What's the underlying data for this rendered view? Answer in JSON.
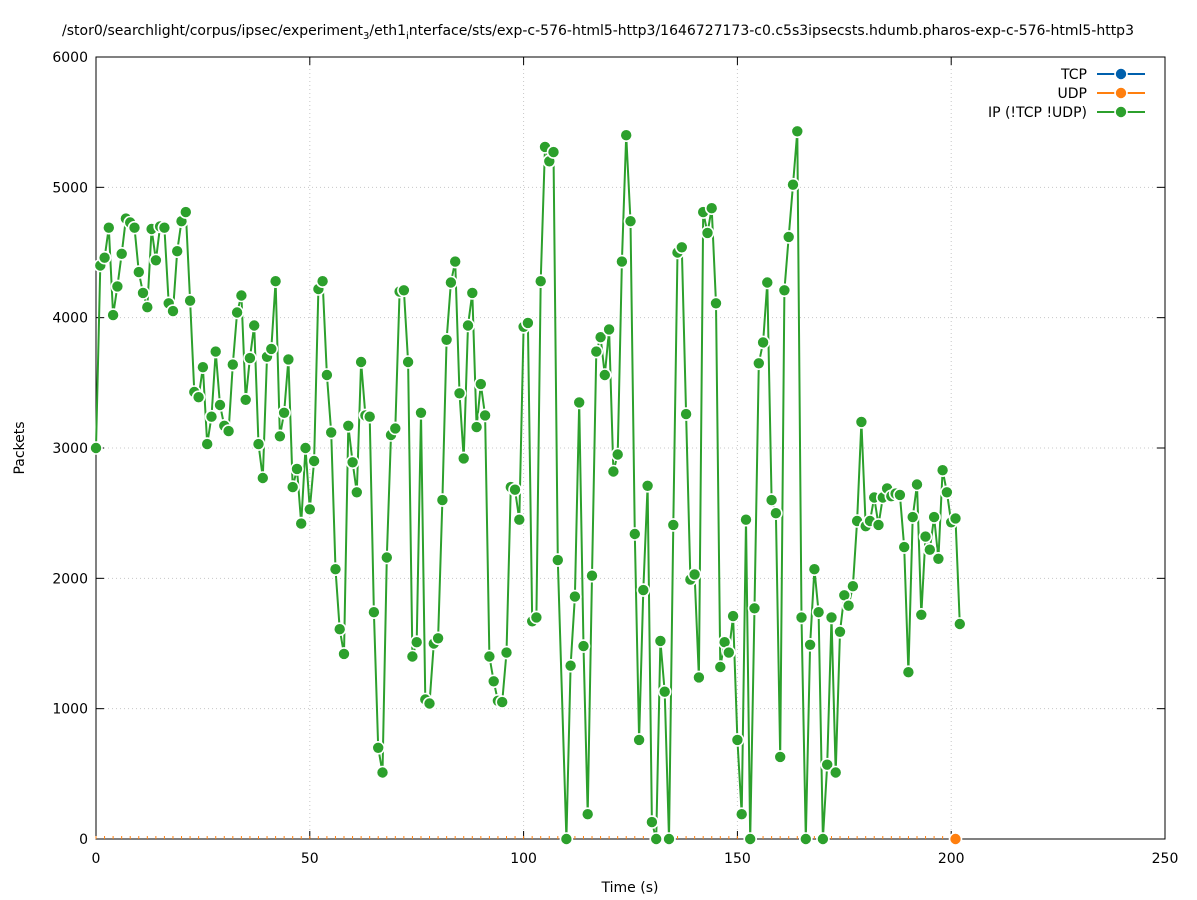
{
  "chart_data": {
    "type": "line",
    "title_parts": [
      {
        "text": "/stor0/searchlight/corpus/ipsec/experiment"
      },
      {
        "text": "3",
        "sub": true
      },
      {
        "text": "/eth1"
      },
      {
        "text": "i",
        "sub": true
      },
      {
        "text": "nterface/sts/exp-c-576-html5-http3/1646727173-c0.c5s3ipsecsts.hdumb.pharos-exp-c-576-html5-http3"
      }
    ],
    "xlabel": "Time (s)",
    "ylabel": "Packets",
    "xlim": [
      0,
      250
    ],
    "ylim": [
      0,
      6000
    ],
    "x_ticks": [
      "0",
      "50",
      "100",
      "150",
      "200",
      "250"
    ],
    "y_ticks": [
      "0",
      "1000",
      "2000",
      "3000",
      "4000",
      "5000",
      "6000"
    ],
    "grid": true,
    "legend_position": "top-right",
    "series": [
      {
        "name": "TCP",
        "color": "#0060ad",
        "points": []
      },
      {
        "name": "UDP",
        "color": "#ff7f0e",
        "points": [
          [
            201,
            0
          ]
        ]
      },
      {
        "name": "IP (!TCP  !UDP)",
        "color": "#2ca02c",
        "points": [
          [
            0,
            3000
          ],
          [
            1,
            4400
          ],
          [
            2,
            4460
          ],
          [
            3,
            4690
          ],
          [
            4,
            4020
          ],
          [
            5,
            4240
          ],
          [
            6,
            4490
          ],
          [
            7,
            4760
          ],
          [
            8,
            4730
          ],
          [
            9,
            4690
          ],
          [
            10,
            4350
          ],
          [
            11,
            4190
          ],
          [
            12,
            4080
          ],
          [
            13,
            4680
          ],
          [
            14,
            4440
          ],
          [
            15,
            4700
          ],
          [
            16,
            4690
          ],
          [
            17,
            4110
          ],
          [
            18,
            4050
          ],
          [
            19,
            4510
          ],
          [
            20,
            4740
          ],
          [
            21,
            4810
          ],
          [
            22,
            4130
          ],
          [
            23,
            3430
          ],
          [
            24,
            3390
          ],
          [
            25,
            3620
          ],
          [
            26,
            3030
          ],
          [
            27,
            3240
          ],
          [
            28,
            3740
          ],
          [
            29,
            3330
          ],
          [
            30,
            3170
          ],
          [
            31,
            3130
          ],
          [
            32,
            3640
          ],
          [
            33,
            4040
          ],
          [
            34,
            4170
          ],
          [
            35,
            3370
          ],
          [
            36,
            3690
          ],
          [
            37,
            3940
          ],
          [
            38,
            3030
          ],
          [
            39,
            2770
          ],
          [
            40,
            3700
          ],
          [
            41,
            3760
          ],
          [
            42,
            4280
          ],
          [
            43,
            3090
          ],
          [
            44,
            3270
          ],
          [
            45,
            3680
          ],
          [
            46,
            2700
          ],
          [
            47,
            2840
          ],
          [
            48,
            2420
          ],
          [
            49,
            3000
          ],
          [
            50,
            2530
          ],
          [
            51,
            2900
          ],
          [
            52,
            4220
          ],
          [
            53,
            4280
          ],
          [
            54,
            3560
          ],
          [
            55,
            3120
          ],
          [
            56,
            2070
          ],
          [
            57,
            1610
          ],
          [
            58,
            1420
          ],
          [
            59,
            3170
          ],
          [
            60,
            2890
          ],
          [
            61,
            2660
          ],
          [
            62,
            3660
          ],
          [
            63,
            3250
          ],
          [
            64,
            3240
          ],
          [
            65,
            1740
          ],
          [
            66,
            700
          ],
          [
            67,
            510
          ],
          [
            68,
            2160
          ],
          [
            69,
            3100
          ],
          [
            70,
            3150
          ],
          [
            71,
            4200
          ],
          [
            72,
            4210
          ],
          [
            73,
            3660
          ],
          [
            74,
            1400
          ],
          [
            75,
            1510
          ],
          [
            76,
            3270
          ],
          [
            77,
            1070
          ],
          [
            78,
            1040
          ],
          [
            79,
            1500
          ],
          [
            80,
            1540
          ],
          [
            81,
            2600
          ],
          [
            82,
            3830
          ],
          [
            83,
            4270
          ],
          [
            84,
            4430
          ],
          [
            85,
            3420
          ],
          [
            86,
            2920
          ],
          [
            87,
            3940
          ],
          [
            88,
            4190
          ],
          [
            89,
            3160
          ],
          [
            90,
            3490
          ],
          [
            91,
            3250
          ],
          [
            92,
            1400
          ],
          [
            93,
            1210
          ],
          [
            94,
            1060
          ],
          [
            95,
            1050
          ],
          [
            96,
            1430
          ],
          [
            97,
            2700
          ],
          [
            98,
            2680
          ],
          [
            99,
            2450
          ],
          [
            100,
            3930
          ],
          [
            101,
            3960
          ],
          [
            102,
            1670
          ],
          [
            103,
            1700
          ],
          [
            104,
            4280
          ],
          [
            105,
            5310
          ],
          [
            106,
            5200
          ],
          [
            107,
            5270
          ],
          [
            108,
            2140
          ],
          [
            110,
            0
          ],
          [
            111,
            1330
          ],
          [
            112,
            1860
          ],
          [
            113,
            3350
          ],
          [
            114,
            1480
          ],
          [
            115,
            190
          ],
          [
            116,
            2020
          ],
          [
            117,
            3740
          ],
          [
            118,
            3850
          ],
          [
            119,
            3560
          ],
          [
            120,
            3910
          ],
          [
            121,
            2820
          ],
          [
            122,
            2950
          ],
          [
            123,
            4430
          ],
          [
            124,
            5400
          ],
          [
            125,
            4740
          ],
          [
            126,
            2340
          ],
          [
            127,
            760
          ],
          [
            128,
            1910
          ],
          [
            129,
            2710
          ],
          [
            130,
            130
          ],
          [
            131,
            0
          ],
          [
            132,
            1520
          ],
          [
            133,
            1130
          ],
          [
            134,
            0
          ],
          [
            135,
            2410
          ],
          [
            136,
            4500
          ],
          [
            137,
            4540
          ],
          [
            138,
            3260
          ],
          [
            139,
            1990
          ],
          [
            140,
            2030
          ],
          [
            141,
            1240
          ],
          [
            142,
            4810
          ],
          [
            143,
            4650
          ],
          [
            144,
            4840
          ],
          [
            145,
            4110
          ],
          [
            146,
            1320
          ],
          [
            147,
            1510
          ],
          [
            148,
            1430
          ],
          [
            149,
            1710
          ],
          [
            150,
            760
          ],
          [
            151,
            190
          ],
          [
            152,
            2450
          ],
          [
            153,
            0
          ],
          [
            154,
            1770
          ],
          [
            155,
            3650
          ],
          [
            156,
            3810
          ],
          [
            157,
            4270
          ],
          [
            158,
            2600
          ],
          [
            159,
            2500
          ],
          [
            160,
            630
          ],
          [
            161,
            4210
          ],
          [
            162,
            4620
          ],
          [
            163,
            5020
          ],
          [
            164,
            5430
          ],
          [
            165,
            1700
          ],
          [
            166,
            0
          ],
          [
            167,
            1490
          ],
          [
            168,
            2070
          ],
          [
            169,
            1740
          ],
          [
            170,
            0
          ],
          [
            171,
            570
          ],
          [
            172,
            1700
          ],
          [
            173,
            510
          ],
          [
            174,
            1590
          ],
          [
            175,
            1870
          ],
          [
            176,
            1790
          ],
          [
            177,
            1940
          ],
          [
            178,
            2440
          ],
          [
            179,
            3200
          ],
          [
            180,
            2400
          ],
          [
            181,
            2440
          ],
          [
            182,
            2620
          ],
          [
            183,
            2410
          ],
          [
            184,
            2620
          ],
          [
            185,
            2690
          ],
          [
            186,
            2630
          ],
          [
            187,
            2650
          ],
          [
            188,
            2640
          ],
          [
            189,
            2240
          ],
          [
            190,
            1280
          ],
          [
            191,
            2470
          ],
          [
            192,
            2720
          ],
          [
            193,
            1720
          ],
          [
            194,
            2320
          ],
          [
            195,
            2220
          ],
          [
            196,
            2470
          ],
          [
            197,
            2150
          ],
          [
            198,
            2830
          ],
          [
            199,
            2660
          ],
          [
            200,
            2430
          ],
          [
            201,
            2460
          ],
          [
            202,
            1650
          ]
        ]
      }
    ]
  }
}
